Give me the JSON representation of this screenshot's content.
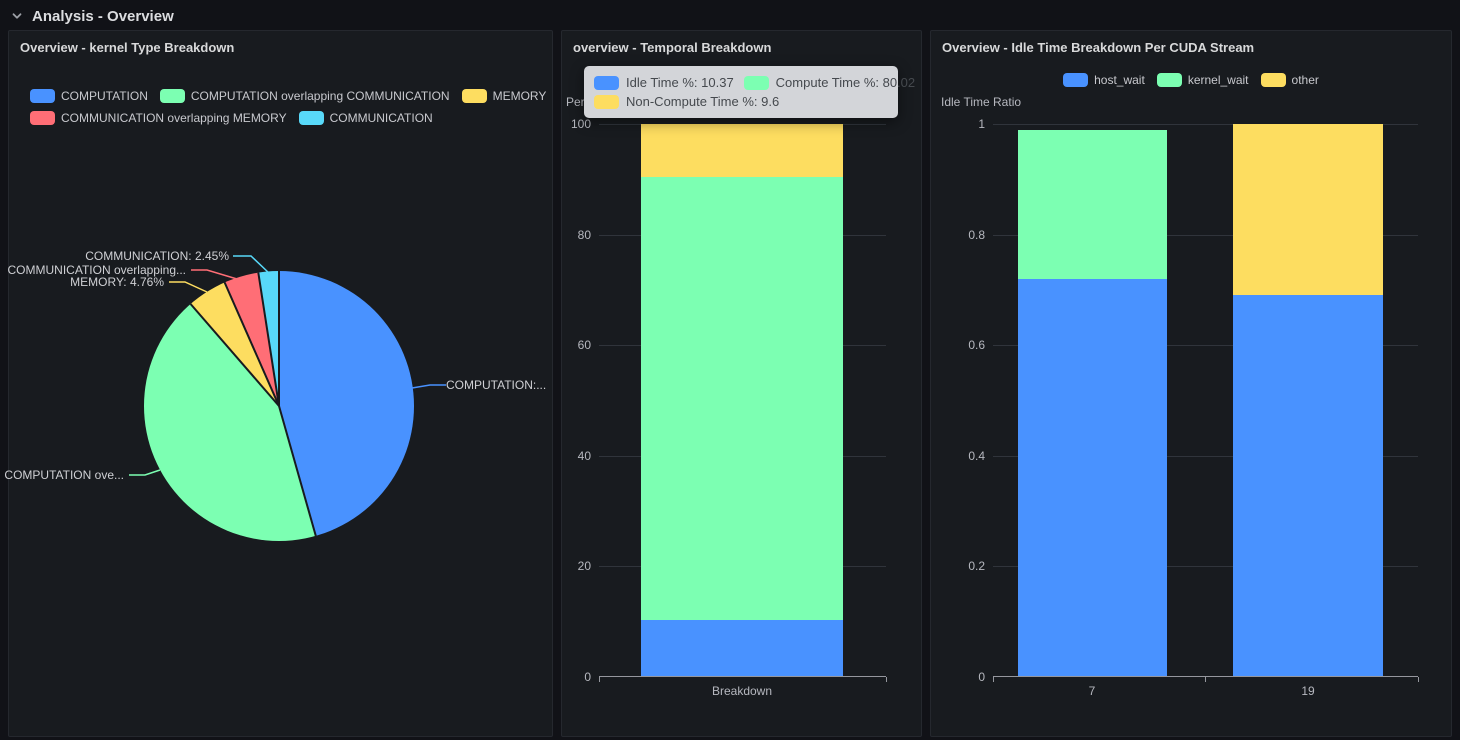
{
  "row": {
    "title": "Analysis - Overview"
  },
  "colors": {
    "blue": "#4992ff",
    "green": "#7cffb2",
    "yellow": "#fddd60",
    "red": "#ff6e76",
    "cyan": "#58d9f9",
    "panel_bg": "#181b1f",
    "page_bg": "#111217",
    "tooltip_bg": "#d3d5d9"
  },
  "chart_data": [
    {
      "type": "pie",
      "title": "Overview - kernel Type Breakdown",
      "slices": [
        {
          "label": "COMPUTATION",
          "value": 45.6,
          "color": "#4992ff",
          "callout": "COMPUTATION:..."
        },
        {
          "label": "COMPUTATION overlapping COMMUNICATION",
          "value": 43.04,
          "color": "#7cffb2",
          "callout": "COMPUTATION ove..."
        },
        {
          "label": "MEMORY",
          "value": 4.76,
          "color": "#fddd60",
          "callout": "MEMORY: 4.76%"
        },
        {
          "label": "COMMUNICATION overlapping MEMORY",
          "value": 4.15,
          "color": "#ff6e76",
          "callout": "COMMUNICATION overlapping..."
        },
        {
          "label": "COMMUNICATION",
          "value": 2.45,
          "color": "#58d9f9",
          "callout": "COMMUNICATION: 2.45%"
        }
      ],
      "legend": {
        "position": "top-left",
        "rows": [
          [
            "COMPUTATION",
            "COMPUTATION overlapping COMMUNICATION",
            "MEMORY"
          ],
          [
            "COMMUNICATION overlapping MEMORY",
            "COMMUNICATION"
          ]
        ]
      }
    },
    {
      "type": "bar",
      "stacked": true,
      "title": "overview - Temporal Breakdown",
      "categories": [
        "Breakdown"
      ],
      "series": [
        {
          "name": "Idle Time %",
          "color": "#4992ff",
          "values": [
            10.37
          ]
        },
        {
          "name": "Compute Time %",
          "color": "#7cffb2",
          "values": [
            80.02
          ]
        },
        {
          "name": "Non-Compute Time %",
          "color": "#fddd60",
          "values": [
            9.6
          ]
        }
      ],
      "ylabel": "Percentage",
      "ylim": [
        0,
        100
      ],
      "yticks": [
        0,
        20,
        40,
        60,
        80,
        100
      ],
      "grid": true,
      "tooltip": {
        "rows": [
          [
            {
              "color": "#4992ff",
              "text": "Idle Time %: 10.37"
            },
            {
              "color": "#7cffb2",
              "text": "Compute Time %: 80.02"
            }
          ],
          [
            {
              "color": "#fddd60",
              "text": "Non-Compute Time %: 9.6"
            }
          ]
        ]
      }
    },
    {
      "type": "bar",
      "stacked": true,
      "title": "Overview - Idle Time Breakdown Per CUDA Stream",
      "categories": [
        "7",
        "19"
      ],
      "series": [
        {
          "name": "host_wait",
          "color": "#4992ff",
          "values": [
            0.72,
            0.69
          ]
        },
        {
          "name": "kernel_wait",
          "color": "#7cffb2",
          "values": [
            0.27,
            0
          ]
        },
        {
          "name": "other",
          "color": "#fddd60",
          "values": [
            0,
            0.31
          ]
        }
      ],
      "ylabel": "Idle Time Ratio",
      "ylim": [
        0,
        1
      ],
      "yticks": [
        0,
        0.2,
        0.4,
        0.6,
        0.8,
        1
      ],
      "grid": true,
      "legend": {
        "position": "top-center",
        "items": [
          "host_wait",
          "kernel_wait",
          "other"
        ]
      }
    }
  ]
}
